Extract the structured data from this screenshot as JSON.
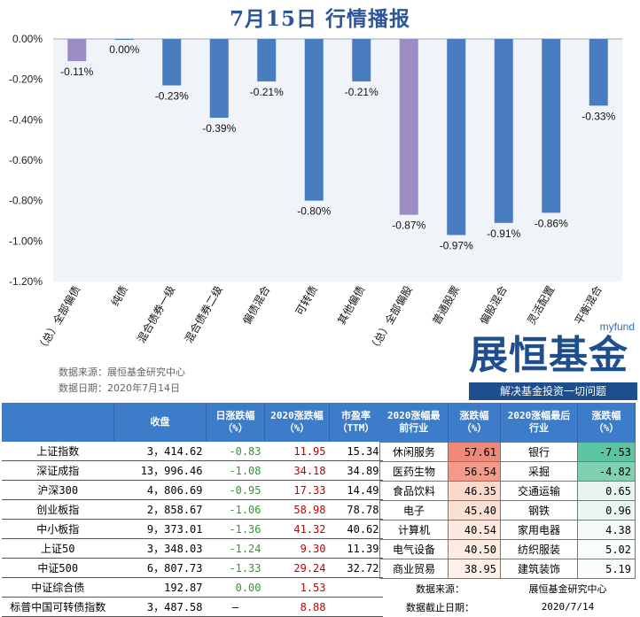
{
  "title": "7月15日 行情播报",
  "chart_data": {
    "type": "bar",
    "categories": [
      "（总）全部偏债",
      "纯债",
      "混合债券一级",
      "混合债券二级",
      "偏债混合",
      "可转债",
      "其他偏债",
      "（总）全部偏股",
      "普通股票",
      "偏股混合",
      "灵活配置",
      "平衡混合"
    ],
    "values": [
      -0.11,
      0.0,
      -0.23,
      -0.39,
      -0.21,
      -0.8,
      -0.21,
      -0.87,
      -0.97,
      -0.91,
      -0.86,
      -0.33
    ],
    "value_labels": [
      "-0.11%",
      "0.00%",
      "-0.23%",
      "-0.39%",
      "-0.21%",
      "-0.80%",
      "-0.21%",
      "-0.87%",
      "-0.97%",
      "-0.91%",
      "-0.86%",
      "-0.33%"
    ],
    "highlight_indices": [
      0,
      7
    ],
    "colors": {
      "bar": "#4a7dc0",
      "highlight": "#9b8cc4",
      "plot_bg": "#f0f4f9"
    },
    "ylim": [
      -1.2,
      0.0
    ],
    "yticks": [
      0.0,
      -0.2,
      -0.4,
      -0.6,
      -0.8,
      -1.0,
      -1.2
    ],
    "ytick_labels": [
      "0.00%",
      "-0.20%",
      "-0.40%",
      "-0.60%",
      "-0.80%",
      "-1.00%",
      "-1.20%"
    ],
    "grid": false,
    "xlabel": "",
    "ylabel": ""
  },
  "source": {
    "line1": "数据来源：展恒基金研究中心",
    "line2": "数据日期：2020年7月14日"
  },
  "logo": {
    "brand": "myfund",
    "name": "展恒基金",
    "slogan": "解决基金投资一切问题"
  },
  "left_table": {
    "headers": [
      "",
      "收盘",
      "日涨跌幅（%）",
      "2020涨跌幅（%）",
      "市盈率（TTM）"
    ],
    "rows": [
      {
        "name": "上证指数",
        "close": "3，414.62",
        "day": "-0.83",
        "ytd": "11.95",
        "pe": "15.34"
      },
      {
        "name": "深证成指",
        "close": "13，996.46",
        "day": "-1.08",
        "ytd": "34.18",
        "pe": "34.89"
      },
      {
        "name": "沪深300",
        "close": "4，806.69",
        "day": "-0.95",
        "ytd": "17.33",
        "pe": "14.49"
      },
      {
        "name": "创业板指",
        "close": "2，858.67",
        "day": "-1.06",
        "ytd": "58.98",
        "pe": "78.78"
      },
      {
        "name": "中小板指",
        "close": "9，373.01",
        "day": "-1.36",
        "ytd": "41.32",
        "pe": "40.62"
      },
      {
        "name": "上证50",
        "close": "3，348.03",
        "day": "-1.24",
        "ytd": "9.30",
        "pe": "11.39"
      },
      {
        "name": "中证500",
        "close": "6，807.73",
        "day": "-1.33",
        "ytd": "29.24",
        "pe": "32.72"
      },
      {
        "name": "中证综合债",
        "close": "192.87",
        "day": "0.00",
        "ytd": "1.53",
        "pe": ""
      },
      {
        "name": "标普中国可转债指数",
        "close": "3，487.58",
        "day": "–",
        "ytd": "8.88",
        "pe": ""
      }
    ]
  },
  "right_table": {
    "headers": [
      "2020涨幅最前行业",
      "涨跌幅（%）",
      "2020涨幅最后行业",
      "涨跌幅（%）"
    ],
    "rows": [
      {
        "top": "休闲服务",
        "top_pct": "57.61",
        "top_color": "#f08878",
        "bot": "银行",
        "bot_pct": "-7.53",
        "bot_color": "#5cc4a0"
      },
      {
        "top": "医药生物",
        "top_pct": "56.54",
        "top_color": "#f39a8a",
        "bot": "采掘",
        "bot_pct": "-4.82",
        "bot_color": "#80d0b2"
      },
      {
        "top": "食品饮料",
        "top_pct": "46.35",
        "top_color": "#fbd9cd",
        "bot": "交通运输",
        "bot_pct": "0.65",
        "bot_color": "#e8f5ee"
      },
      {
        "top": "电子",
        "top_pct": "45.40",
        "top_color": "#fcdfd3",
        "bot": "钢铁",
        "bot_pct": "0.96",
        "bot_color": "#eaf6f0"
      },
      {
        "top": "计算机",
        "top_pct": "40.54",
        "top_color": "#fde9df",
        "bot": "家用电器",
        "bot_pct": "4.38",
        "bot_color": "#f6fbf8"
      },
      {
        "top": "电气设备",
        "top_pct": "40.50",
        "top_color": "#fdeae0",
        "bot": "纺织服装",
        "bot_pct": "5.02",
        "bot_color": "#f8fcfa"
      },
      {
        "top": "商业贸易",
        "top_pct": "38.95",
        "top_color": "#fef0e8",
        "bot": "建筑装饰",
        "bot_pct": "5.19",
        "bot_color": "#fbfdfc"
      }
    ],
    "footer": [
      {
        "label": "数据来源：",
        "value": "展恒基金研究中心"
      },
      {
        "label": "数据截止日期：",
        "value": "2020/7/14"
      }
    ]
  }
}
